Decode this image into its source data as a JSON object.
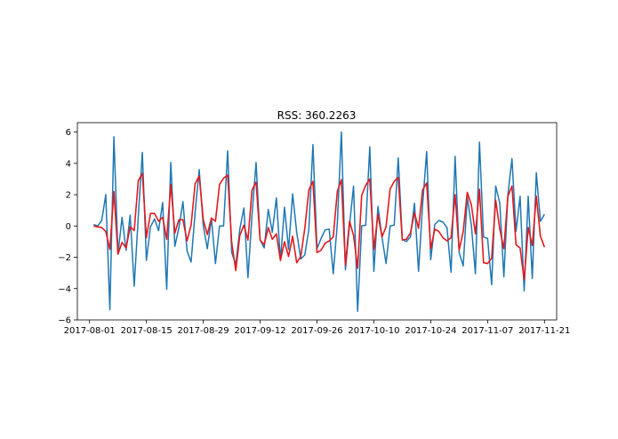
{
  "chart_data": {
    "type": "line",
    "title": "RSS: 360.2263",
    "xlabel": "",
    "ylabel": "",
    "x_start": "2017-08-02",
    "x_step_days": 1,
    "xlim": [
      "2017-07-29",
      "2017-11-24"
    ],
    "ylim": [
      -6.0,
      6.6
    ],
    "x_ticks": [
      "2017-08-01",
      "2017-08-15",
      "2017-08-29",
      "2017-09-12",
      "2017-09-26",
      "2017-10-10",
      "2017-10-24",
      "2017-11-07",
      "2017-11-21"
    ],
    "y_ticks": [
      -6,
      -4,
      -2,
      0,
      2,
      4,
      6
    ],
    "grid": false,
    "series": [
      {
        "color": "#1f77b4",
        "values": [
          0.1,
          0.0,
          0.35,
          2.0,
          -5.35,
          5.7,
          -1.8,
          0.55,
          -1.55,
          0.7,
          -3.85,
          0.6,
          4.7,
          -2.2,
          -0.05,
          0.45,
          -0.3,
          1.5,
          -4.05,
          4.05,
          -1.3,
          -0.1,
          1.55,
          -1.6,
          -2.3,
          0.9,
          3.6,
          0.0,
          -1.45,
          0.5,
          -2.4,
          0.0,
          0.0,
          4.8,
          -1.7,
          -2.45,
          -0.2,
          1.15,
          -3.3,
          0.7,
          4.05,
          -0.9,
          -1.4,
          1.05,
          -0.4,
          1.8,
          -2.2,
          1.2,
          -1.5,
          2.05,
          -0.4,
          -2.1,
          -1.85,
          -0.2,
          5.2,
          -1.45,
          -0.8,
          -0.25,
          -0.2,
          -3.05,
          0.15,
          6.0,
          -2.8,
          0.05,
          2.55,
          -5.45,
          0.0,
          0.05,
          5.05,
          -2.9,
          1.25,
          -0.7,
          -2.4,
          0.0,
          0.05,
          4.35,
          -0.85,
          -1.0,
          -0.7,
          1.45,
          -2.9,
          1.35,
          4.75,
          -2.15,
          0.1,
          0.35,
          0.25,
          -0.1,
          -2.95,
          4.45,
          -1.7,
          -2.55,
          1.85,
          0.05,
          -3.05,
          5.35,
          -0.7,
          -0.8,
          -3.75,
          2.55,
          1.45,
          -3.25,
          2.0,
          4.3,
          -0.35,
          1.9,
          -4.15,
          1.9,
          -3.35,
          3.4,
          0.3,
          0.75
        ]
      },
      {
        "color": "#e31a1c",
        "values": [
          0.0,
          -0.05,
          -0.1,
          -0.35,
          -1.5,
          2.2,
          -1.8,
          -1.05,
          -1.4,
          -0.05,
          -0.3,
          2.9,
          3.35,
          -0.75,
          0.8,
          0.8,
          0.3,
          0.55,
          -0.85,
          2.65,
          -0.45,
          0.4,
          0.4,
          -0.95,
          0.05,
          2.7,
          3.2,
          0.4,
          -0.55,
          0.5,
          0.3,
          2.65,
          3.05,
          3.25,
          -1.05,
          -2.85,
          -0.6,
          0.05,
          -0.9,
          2.3,
          2.8,
          -0.9,
          -1.2,
          -0.1,
          -0.85,
          -0.5,
          -2.2,
          -1.0,
          -1.95,
          -0.65,
          -2.35,
          -1.95,
          -0.15,
          2.3,
          2.85,
          -1.7,
          -1.55,
          -1.1,
          -0.95,
          -0.7,
          2.2,
          2.95,
          -2.5,
          0.3,
          -0.6,
          -2.7,
          1.95,
          2.6,
          3.0,
          -1.5,
          0.75,
          -0.7,
          -0.05,
          2.35,
          2.85,
          3.1,
          -0.9,
          -0.85,
          -0.45,
          0.85,
          -0.15,
          2.3,
          2.75,
          -1.45,
          -0.2,
          -0.35,
          -0.75,
          -0.95,
          -0.75,
          2.0,
          -1.55,
          -0.35,
          2.15,
          1.35,
          -0.5,
          2.35,
          -2.35,
          -2.4,
          -2.05,
          1.65,
          -0.2,
          -1.45,
          1.9,
          2.55,
          -1.2,
          -1.4,
          -3.45,
          -0.1,
          -1.25,
          1.9,
          -0.65,
          -1.35
        ]
      }
    ]
  }
}
